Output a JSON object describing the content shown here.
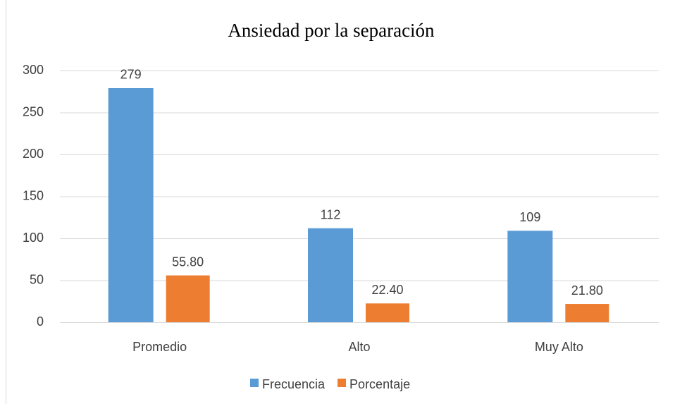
{
  "chart_data": {
    "type": "bar",
    "title": "Ansiedad por la separación",
    "categories": [
      "Promedio",
      "Alto",
      "Muy Alto"
    ],
    "series": [
      {
        "name": "Frecuencia",
        "color": "#5b9bd5",
        "values": [
          279,
          112,
          109
        ]
      },
      {
        "name": "Porcentaje",
        "color": "#ed7d31",
        "values": [
          55.8,
          22.4,
          21.8
        ],
        "value_labels": [
          "55.80",
          "22.40",
          "21.80"
        ]
      }
    ],
    "ylim": [
      0,
      300
    ],
    "yticks": [
      0,
      50,
      100,
      150,
      200,
      250,
      300
    ],
    "grid": true,
    "legend": "bottom"
  }
}
